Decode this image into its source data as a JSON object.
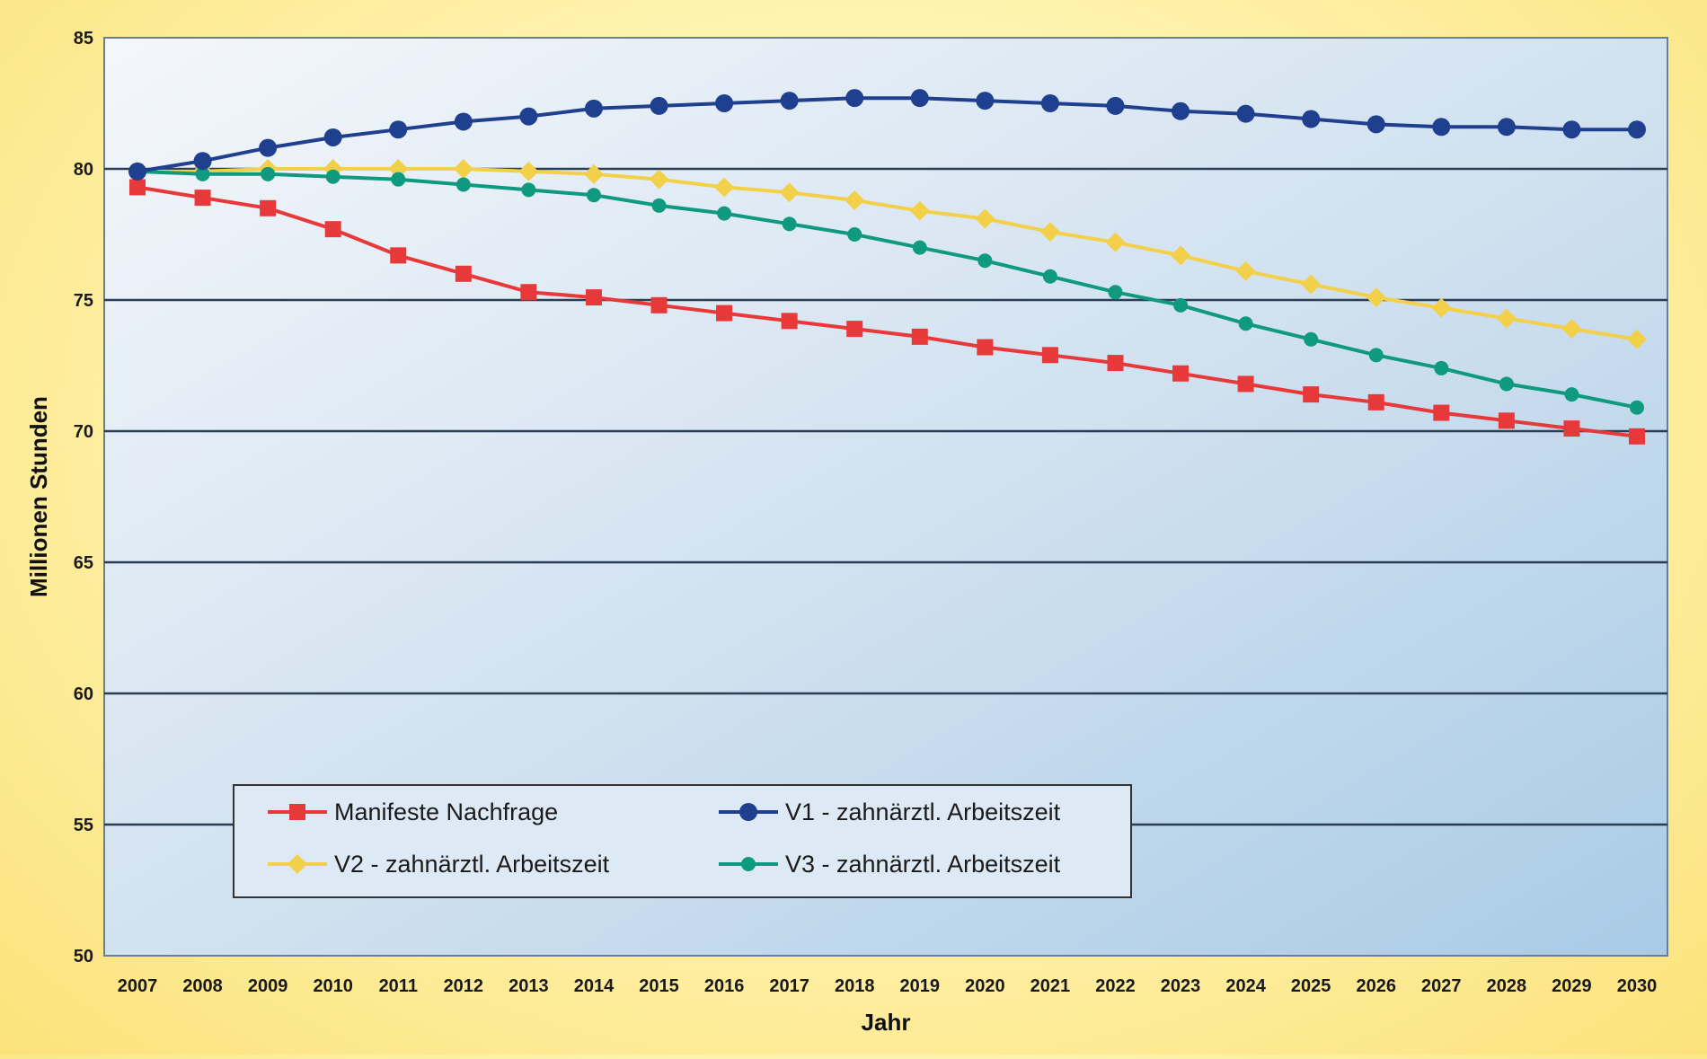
{
  "chart_data": {
    "type": "line",
    "title": "",
    "xlabel": "Jahr",
    "ylabel": "Millionen Stunden",
    "ylim": [
      50,
      85
    ],
    "yticks": [
      50,
      55,
      60,
      65,
      70,
      75,
      80,
      85
    ],
    "grid": "horizontal",
    "legend_placement": "bottom-left",
    "categories": [
      "2007",
      "2008",
      "2009",
      "2010",
      "2011",
      "2012",
      "2013",
      "2014",
      "2015",
      "2016",
      "2017",
      "2018",
      "2019",
      "2020",
      "2021",
      "2022",
      "2023",
      "2024",
      "2025",
      "2026",
      "2027",
      "2028",
      "2029",
      "2030"
    ],
    "series": [
      {
        "name": "Manifeste Nachfrage",
        "color": "#e8393a",
        "marker": "square",
        "values": [
          79.3,
          78.9,
          78.5,
          77.7,
          76.7,
          76.0,
          75.3,
          75.1,
          74.8,
          74.5,
          74.2,
          73.9,
          73.6,
          73.2,
          72.9,
          72.6,
          72.2,
          71.8,
          71.4,
          71.1,
          70.7,
          70.4,
          70.1,
          69.8
        ]
      },
      {
        "name": "V1 - zahnärztl. Arbeitszeit",
        "color": "#1f3f8f",
        "marker": "circle",
        "values": [
          79.9,
          80.3,
          80.8,
          81.2,
          81.5,
          81.8,
          82.0,
          82.3,
          82.4,
          82.5,
          82.6,
          82.7,
          82.7,
          82.6,
          82.5,
          82.4,
          82.2,
          82.1,
          81.9,
          81.7,
          81.6,
          81.6,
          81.5,
          81.5
        ]
      },
      {
        "name": "V2 - zahnärztl. Arbeitszeit",
        "color": "#f3d04a",
        "marker": "diamond",
        "values": [
          79.9,
          79.9,
          80.0,
          80.0,
          80.0,
          80.0,
          79.9,
          79.8,
          79.6,
          79.3,
          79.1,
          78.8,
          78.4,
          78.1,
          77.6,
          77.2,
          76.7,
          76.1,
          75.6,
          75.1,
          74.7,
          74.3,
          73.9,
          73.5
        ]
      },
      {
        "name": "V3 - zahnärztl. Arbeitszeit",
        "color": "#0f9a80",
        "marker": "circle-small",
        "values": [
          79.9,
          79.8,
          79.8,
          79.7,
          79.6,
          79.4,
          79.2,
          79.0,
          78.6,
          78.3,
          77.9,
          77.5,
          77.0,
          76.5,
          75.9,
          75.3,
          74.8,
          74.1,
          73.5,
          72.9,
          72.4,
          71.8,
          71.4,
          70.9
        ]
      }
    ]
  }
}
